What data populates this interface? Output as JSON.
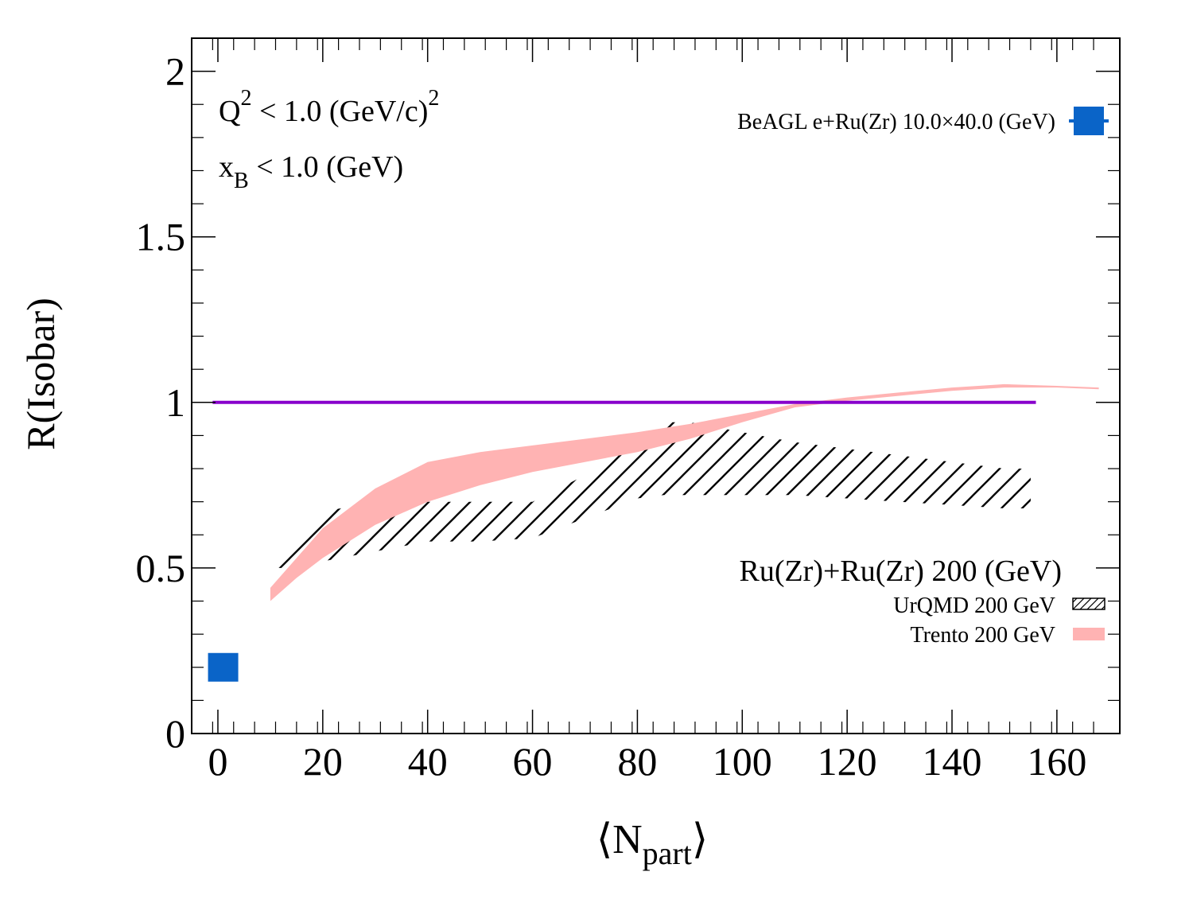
{
  "chart_data": {
    "type": "area",
    "title": "",
    "xlabel_main": "⟨N",
    "xlabel_sub": "part",
    "xlabel_close": "⟩",
    "ylabel": "R(Isobar)",
    "xlim": [
      -5,
      172
    ],
    "ylim": [
      0,
      2.1
    ],
    "x_ticks": [
      0,
      20,
      40,
      60,
      80,
      100,
      120,
      140,
      160
    ],
    "x_tick_labels": [
      "0",
      "20",
      "40",
      "60",
      "80",
      "100",
      "120",
      "140",
      "160"
    ],
    "y_ticks": [
      0,
      0.5,
      1,
      1.5,
      2
    ],
    "y_tick_labels": [
      "0",
      "0.5",
      "1",
      "1.5",
      "2"
    ],
    "grid": false,
    "annotations": {
      "q2": {
        "main": "Q",
        "sup1": "2",
        "rest": " < 1.0 (GeV/c)",
        "sup2": "2"
      },
      "xb": {
        "main": "x",
        "sub": "B",
        "rest": " < 1.0 (GeV)"
      },
      "system": "Ru(Zr)+Ru(Zr) 200 (GeV)"
    },
    "series": [
      {
        "name": "BeAGL  e+Ru(Zr) 10.0×40.0 (GeV)",
        "kind": "point",
        "marker": "square",
        "color": "#0a64c8",
        "x": [
          1
        ],
        "y": [
          0.2
        ]
      },
      {
        "name": "UrQMD  200 GeV",
        "kind": "hatched-band",
        "color": "#000000",
        "x": [
          10,
          15,
          20,
          30,
          40,
          50,
          60,
          70,
          80,
          85,
          90,
          100,
          110,
          120,
          130,
          140,
          150,
          155
        ],
        "lower": [
          0.5,
          0.5,
          0.52,
          0.55,
          0.58,
          0.58,
          0.59,
          0.65,
          0.71,
          0.72,
          0.72,
          0.72,
          0.72,
          0.71,
          0.7,
          0.69,
          0.68,
          0.68
        ],
        "upper": [
          0.52,
          0.6,
          0.67,
          0.7,
          0.7,
          0.7,
          0.7,
          0.78,
          0.88,
          0.94,
          0.94,
          0.91,
          0.88,
          0.86,
          0.84,
          0.82,
          0.8,
          0.8
        ]
      },
      {
        "name": "Trento 200 GeV",
        "kind": "band",
        "color": "#ffb3b3",
        "x": [
          10,
          15,
          20,
          30,
          40,
          50,
          60,
          70,
          80,
          90,
          100,
          110,
          120,
          130,
          140,
          150,
          160,
          168
        ],
        "lower": [
          0.4,
          0.47,
          0.53,
          0.63,
          0.7,
          0.75,
          0.79,
          0.82,
          0.85,
          0.89,
          0.94,
          0.985,
          1.005,
          1.02,
          1.035,
          1.045,
          1.045,
          1.04
        ],
        "upper": [
          0.44,
          0.53,
          0.62,
          0.74,
          0.82,
          0.85,
          0.87,
          0.89,
          0.91,
          0.935,
          0.965,
          0.995,
          1.015,
          1.03,
          1.045,
          1.055,
          1.05,
          1.045
        ]
      },
      {
        "name": "",
        "kind": "hline",
        "color": "#8800cc",
        "x": [
          -1,
          156
        ],
        "y": [
          1,
          1
        ]
      }
    ]
  }
}
